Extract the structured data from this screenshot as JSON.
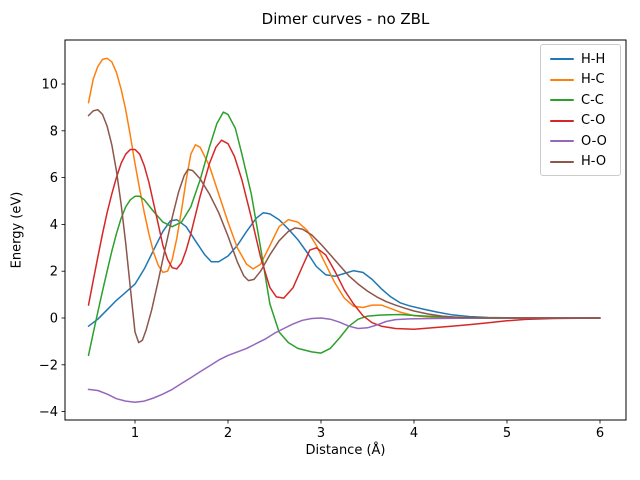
{
  "figure": {
    "title": "Dimer curves - no ZBL",
    "xlabel": "Distance (Å)",
    "ylabel": "Energy (eV)"
  },
  "chart_data": {
    "type": "line",
    "title": "Dimer curves - no ZBL",
    "xlabel": "Distance (Å)",
    "ylabel": "Energy (eV)",
    "xlim": [
      0.225,
      6.275
    ],
    "ylim": [
      -4.35,
      11.85
    ],
    "xticks": [
      1,
      2,
      3,
      4,
      5,
      6
    ],
    "xtick_labels": [
      "1",
      "2",
      "3",
      "4",
      "5",
      "6"
    ],
    "yticks": [
      -4,
      -2,
      0,
      2,
      4,
      6,
      8,
      10
    ],
    "ytick_labels": [
      "−4",
      "−2",
      "0",
      "2",
      "4",
      "6",
      "8",
      "10"
    ],
    "grid": false,
    "legend_position": "upper right",
    "series": [
      {
        "name": "H-H",
        "color": "#1f77b4",
        "points": [
          [
            0.5,
            -0.35
          ],
          [
            0.6,
            -0.05
          ],
          [
            0.7,
            0.35
          ],
          [
            0.8,
            0.75
          ],
          [
            0.9,
            1.1
          ],
          [
            1.0,
            1.45
          ],
          [
            1.1,
            2.1
          ],
          [
            1.2,
            2.9
          ],
          [
            1.3,
            3.7
          ],
          [
            1.38,
            4.15
          ],
          [
            1.45,
            4.2
          ],
          [
            1.55,
            3.9
          ],
          [
            1.65,
            3.3
          ],
          [
            1.75,
            2.7
          ],
          [
            1.82,
            2.4
          ],
          [
            1.9,
            2.4
          ],
          [
            2.0,
            2.65
          ],
          [
            2.1,
            3.1
          ],
          [
            2.2,
            3.7
          ],
          [
            2.3,
            4.25
          ],
          [
            2.38,
            4.5
          ],
          [
            2.45,
            4.45
          ],
          [
            2.55,
            4.2
          ],
          [
            2.65,
            3.8
          ],
          [
            2.75,
            3.35
          ],
          [
            2.85,
            2.8
          ],
          [
            2.95,
            2.2
          ],
          [
            3.05,
            1.85
          ],
          [
            3.15,
            1.78
          ],
          [
            3.25,
            1.9
          ],
          [
            3.35,
            2.02
          ],
          [
            3.45,
            1.95
          ],
          [
            3.55,
            1.65
          ],
          [
            3.65,
            1.25
          ],
          [
            3.75,
            0.9
          ],
          [
            3.85,
            0.65
          ],
          [
            3.95,
            0.52
          ],
          [
            4.1,
            0.38
          ],
          [
            4.25,
            0.25
          ],
          [
            4.4,
            0.14
          ],
          [
            4.6,
            0.06
          ],
          [
            4.8,
            0.02
          ],
          [
            5.0,
            0.01
          ],
          [
            5.5,
            0
          ],
          [
            6.0,
            0
          ]
        ]
      },
      {
        "name": "H-C",
        "color": "#ff7f0e",
        "points": [
          [
            0.5,
            9.2
          ],
          [
            0.55,
            10.2
          ],
          [
            0.6,
            10.75
          ],
          [
            0.65,
            11.05
          ],
          [
            0.7,
            11.1
          ],
          [
            0.75,
            10.95
          ],
          [
            0.8,
            10.5
          ],
          [
            0.85,
            9.8
          ],
          [
            0.9,
            8.9
          ],
          [
            0.95,
            7.8
          ],
          [
            1.0,
            6.6
          ],
          [
            1.05,
            5.5
          ],
          [
            1.1,
            4.5
          ],
          [
            1.15,
            3.6
          ],
          [
            1.2,
            2.8
          ],
          [
            1.25,
            2.25
          ],
          [
            1.3,
            1.95
          ],
          [
            1.35,
            2.0
          ],
          [
            1.4,
            2.5
          ],
          [
            1.45,
            3.4
          ],
          [
            1.5,
            4.6
          ],
          [
            1.55,
            5.9
          ],
          [
            1.6,
            7.0
          ],
          [
            1.65,
            7.4
          ],
          [
            1.7,
            7.3
          ],
          [
            1.8,
            6.5
          ],
          [
            1.9,
            5.3
          ],
          [
            2.0,
            4.1
          ],
          [
            2.1,
            3.0
          ],
          [
            2.2,
            2.3
          ],
          [
            2.27,
            2.1
          ],
          [
            2.35,
            2.3
          ],
          [
            2.45,
            3.1
          ],
          [
            2.55,
            3.9
          ],
          [
            2.65,
            4.2
          ],
          [
            2.75,
            4.1
          ],
          [
            2.85,
            3.75
          ],
          [
            2.95,
            3.1
          ],
          [
            3.05,
            2.3
          ],
          [
            3.15,
            1.5
          ],
          [
            3.25,
            0.85
          ],
          [
            3.35,
            0.5
          ],
          [
            3.45,
            0.45
          ],
          [
            3.55,
            0.55
          ],
          [
            3.65,
            0.55
          ],
          [
            3.75,
            0.4
          ],
          [
            3.85,
            0.25
          ],
          [
            4.0,
            0.1
          ],
          [
            4.2,
            0.03
          ],
          [
            4.5,
            0.01
          ],
          [
            5.0,
            0
          ],
          [
            6.0,
            0
          ]
        ]
      },
      {
        "name": "C-C",
        "color": "#2ca02c",
        "points": [
          [
            0.5,
            -1.6
          ],
          [
            0.55,
            -0.65
          ],
          [
            0.6,
            0.25
          ],
          [
            0.65,
            1.15
          ],
          [
            0.7,
            2.0
          ],
          [
            0.75,
            2.85
          ],
          [
            0.8,
            3.6
          ],
          [
            0.85,
            4.25
          ],
          [
            0.9,
            4.75
          ],
          [
            0.95,
            5.05
          ],
          [
            1.0,
            5.2
          ],
          [
            1.05,
            5.2
          ],
          [
            1.1,
            5.05
          ],
          [
            1.2,
            4.55
          ],
          [
            1.3,
            4.1
          ],
          [
            1.4,
            3.9
          ],
          [
            1.5,
            4.1
          ],
          [
            1.6,
            4.75
          ],
          [
            1.7,
            5.9
          ],
          [
            1.8,
            7.3
          ],
          [
            1.88,
            8.3
          ],
          [
            1.95,
            8.8
          ],
          [
            2.0,
            8.7
          ],
          [
            2.08,
            8.1
          ],
          [
            2.15,
            7.0
          ],
          [
            2.25,
            5.3
          ],
          [
            2.35,
            3.0
          ],
          [
            2.45,
            0.6
          ],
          [
            2.55,
            -0.6
          ],
          [
            2.65,
            -1.05
          ],
          [
            2.75,
            -1.3
          ],
          [
            2.9,
            -1.45
          ],
          [
            3.0,
            -1.5
          ],
          [
            3.1,
            -1.3
          ],
          [
            3.2,
            -0.85
          ],
          [
            3.3,
            -0.35
          ],
          [
            3.4,
            -0.05
          ],
          [
            3.5,
            0.08
          ],
          [
            3.65,
            0.13
          ],
          [
            3.85,
            0.15
          ],
          [
            4.05,
            0.1
          ],
          [
            4.25,
            0.06
          ],
          [
            4.45,
            0.02
          ],
          [
            4.7,
            0
          ],
          [
            5.0,
            0
          ],
          [
            6.0,
            0
          ]
        ]
      },
      {
        "name": "C-O",
        "color": "#d62728",
        "points": [
          [
            0.5,
            0.55
          ],
          [
            0.55,
            1.6
          ],
          [
            0.6,
            2.6
          ],
          [
            0.65,
            3.6
          ],
          [
            0.7,
            4.5
          ],
          [
            0.75,
            5.3
          ],
          [
            0.8,
            6.0
          ],
          [
            0.85,
            6.6
          ],
          [
            0.9,
            7.0
          ],
          [
            0.95,
            7.2
          ],
          [
            1.0,
            7.2
          ],
          [
            1.05,
            7.0
          ],
          [
            1.1,
            6.5
          ],
          [
            1.15,
            5.8
          ],
          [
            1.2,
            4.9
          ],
          [
            1.25,
            4.0
          ],
          [
            1.3,
            3.1
          ],
          [
            1.35,
            2.5
          ],
          [
            1.4,
            2.15
          ],
          [
            1.45,
            2.1
          ],
          [
            1.5,
            2.35
          ],
          [
            1.55,
            2.9
          ],
          [
            1.6,
            3.6
          ],
          [
            1.7,
            5.2
          ],
          [
            1.8,
            6.6
          ],
          [
            1.87,
            7.3
          ],
          [
            1.93,
            7.6
          ],
          [
            2.0,
            7.45
          ],
          [
            2.07,
            6.9
          ],
          [
            2.15,
            5.9
          ],
          [
            2.25,
            4.3
          ],
          [
            2.35,
            2.6
          ],
          [
            2.45,
            1.3
          ],
          [
            2.52,
            0.9
          ],
          [
            2.6,
            0.85
          ],
          [
            2.7,
            1.3
          ],
          [
            2.8,
            2.2
          ],
          [
            2.88,
            2.9
          ],
          [
            2.95,
            3.0
          ],
          [
            3.05,
            2.7
          ],
          [
            3.15,
            2.0
          ],
          [
            3.25,
            1.2
          ],
          [
            3.35,
            0.6
          ],
          [
            3.45,
            0.1
          ],
          [
            3.55,
            -0.2
          ],
          [
            3.65,
            -0.35
          ],
          [
            3.8,
            -0.45
          ],
          [
            4.0,
            -0.48
          ],
          [
            4.2,
            -0.42
          ],
          [
            4.4,
            -0.35
          ],
          [
            4.6,
            -0.28
          ],
          [
            4.8,
            -0.2
          ],
          [
            5.0,
            -0.12
          ],
          [
            5.2,
            -0.06
          ],
          [
            5.5,
            -0.02
          ],
          [
            6.0,
            0
          ]
        ]
      },
      {
        "name": "O-O",
        "color": "#9467bd",
        "points": [
          [
            0.5,
            -3.05
          ],
          [
            0.6,
            -3.1
          ],
          [
            0.7,
            -3.25
          ],
          [
            0.8,
            -3.45
          ],
          [
            0.9,
            -3.55
          ],
          [
            1.0,
            -3.6
          ],
          [
            1.1,
            -3.55
          ],
          [
            1.2,
            -3.42
          ],
          [
            1.3,
            -3.25
          ],
          [
            1.4,
            -3.05
          ],
          [
            1.5,
            -2.8
          ],
          [
            1.6,
            -2.55
          ],
          [
            1.7,
            -2.3
          ],
          [
            1.8,
            -2.05
          ],
          [
            1.9,
            -1.8
          ],
          [
            2.0,
            -1.6
          ],
          [
            2.1,
            -1.45
          ],
          [
            2.2,
            -1.3
          ],
          [
            2.3,
            -1.1
          ],
          [
            2.4,
            -0.9
          ],
          [
            2.5,
            -0.65
          ],
          [
            2.6,
            -0.45
          ],
          [
            2.7,
            -0.25
          ],
          [
            2.8,
            -0.1
          ],
          [
            2.9,
            -0.02
          ],
          [
            3.0,
            0.0
          ],
          [
            3.1,
            -0.05
          ],
          [
            3.2,
            -0.18
          ],
          [
            3.3,
            -0.35
          ],
          [
            3.4,
            -0.45
          ],
          [
            3.5,
            -0.42
          ],
          [
            3.6,
            -0.3
          ],
          [
            3.7,
            -0.15
          ],
          [
            3.8,
            -0.07
          ],
          [
            3.95,
            -0.04
          ],
          [
            4.2,
            -0.02
          ],
          [
            4.5,
            -0.01
          ],
          [
            5.0,
            0
          ],
          [
            6.0,
            0
          ]
        ]
      },
      {
        "name": "H-O",
        "color": "#8c564b",
        "points": [
          [
            0.5,
            8.65
          ],
          [
            0.55,
            8.85
          ],
          [
            0.6,
            8.9
          ],
          [
            0.65,
            8.7
          ],
          [
            0.7,
            8.2
          ],
          [
            0.75,
            7.4
          ],
          [
            0.8,
            6.3
          ],
          [
            0.85,
            4.9
          ],
          [
            0.9,
            3.2
          ],
          [
            0.95,
            1.3
          ],
          [
            1.0,
            -0.6
          ],
          [
            1.04,
            -1.05
          ],
          [
            1.08,
            -0.95
          ],
          [
            1.12,
            -0.5
          ],
          [
            1.18,
            0.35
          ],
          [
            1.25,
            1.6
          ],
          [
            1.32,
            2.9
          ],
          [
            1.4,
            4.3
          ],
          [
            1.47,
            5.4
          ],
          [
            1.53,
            6.1
          ],
          [
            1.57,
            6.35
          ],
          [
            1.62,
            6.3
          ],
          [
            1.7,
            5.95
          ],
          [
            1.8,
            5.3
          ],
          [
            1.9,
            4.5
          ],
          [
            2.0,
            3.5
          ],
          [
            2.1,
            2.4
          ],
          [
            2.17,
            1.8
          ],
          [
            2.22,
            1.6
          ],
          [
            2.28,
            1.65
          ],
          [
            2.35,
            2.0
          ],
          [
            2.45,
            2.7
          ],
          [
            2.55,
            3.3
          ],
          [
            2.65,
            3.7
          ],
          [
            2.72,
            3.85
          ],
          [
            2.8,
            3.8
          ],
          [
            2.9,
            3.55
          ],
          [
            3.0,
            3.15
          ],
          [
            3.1,
            2.7
          ],
          [
            3.2,
            2.25
          ],
          [
            3.3,
            1.8
          ],
          [
            3.4,
            1.45
          ],
          [
            3.5,
            1.15
          ],
          [
            3.6,
            0.9
          ],
          [
            3.7,
            0.7
          ],
          [
            3.8,
            0.55
          ],
          [
            3.9,
            0.42
          ],
          [
            4.0,
            0.3
          ],
          [
            4.15,
            0.17
          ],
          [
            4.3,
            0.08
          ],
          [
            4.5,
            0.02
          ],
          [
            4.8,
            0
          ],
          [
            5.0,
            0
          ],
          [
            6.0,
            0
          ]
        ]
      }
    ]
  }
}
